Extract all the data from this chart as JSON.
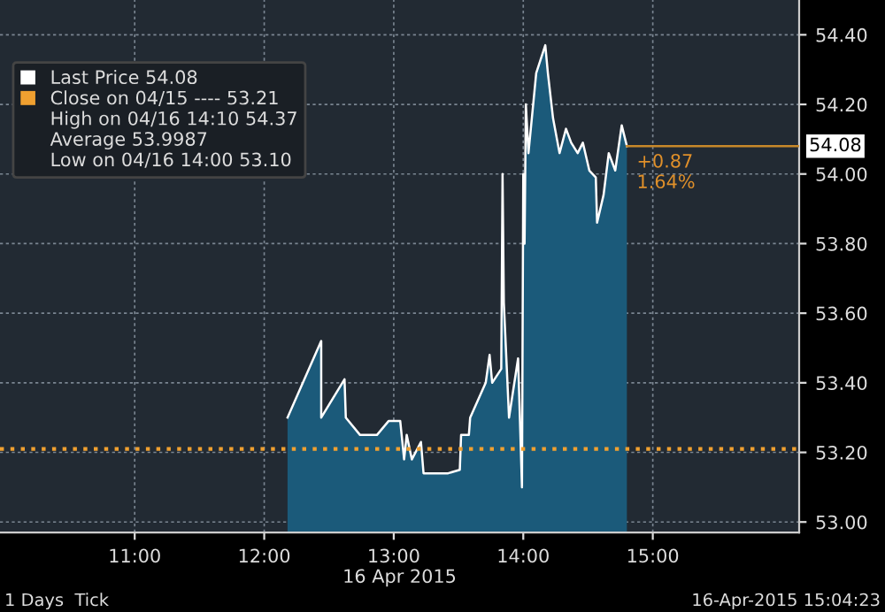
{
  "chart_data": {
    "type": "area",
    "xlabel": "16 Apr 2015",
    "series": [
      {
        "name": "Last Price 54.08",
        "color": "#ffffff",
        "x": [
          12.18,
          12.44,
          12.44,
          12.62,
          12.63,
          12.74,
          12.87,
          12.96,
          13.05,
          13.08,
          13.1,
          13.14,
          13.21,
          13.23,
          13.42,
          13.51,
          13.52,
          13.58,
          13.59,
          13.71,
          13.74,
          13.76,
          13.83,
          13.84,
          13.85,
          13.89,
          13.96,
          13.99,
          14.0,
          14.01,
          14.02,
          14.04,
          14.1,
          14.17,
          14.19,
          14.23,
          14.28,
          14.33,
          14.37,
          14.42,
          14.46,
          14.51,
          14.56,
          14.57,
          14.62,
          14.66,
          14.71,
          14.76,
          14.8
        ],
        "values": [
          53.3,
          53.52,
          53.3,
          53.41,
          53.3,
          53.25,
          53.25,
          53.29,
          53.29,
          53.18,
          53.25,
          53.18,
          53.23,
          53.14,
          53.14,
          53.15,
          53.25,
          53.25,
          53.3,
          53.4,
          53.48,
          53.4,
          53.44,
          54.0,
          53.63,
          53.3,
          53.47,
          53.1,
          54.0,
          53.8,
          54.2,
          54.06,
          54.29,
          54.37,
          54.29,
          54.16,
          54.06,
          54.13,
          54.09,
          54.06,
          54.09,
          54.01,
          53.99,
          53.86,
          53.94,
          54.06,
          54.01,
          54.14,
          54.08
        ]
      }
    ],
    "xlim": [
      9.96,
      16.13
    ],
    "ylim": [
      52.97,
      54.5
    ],
    "xticks": [
      {
        "value": 11,
        "label": "11:00"
      },
      {
        "value": 12,
        "label": "12:00"
      },
      {
        "value": 13,
        "label": "13:00"
      },
      {
        "value": 14,
        "label": "14:00"
      },
      {
        "value": 15,
        "label": "15:00"
      }
    ],
    "yticks": [
      {
        "value": 53.0,
        "label": "53.00"
      },
      {
        "value": 53.2,
        "label": "53.20"
      },
      {
        "value": 53.4,
        "label": "53.40"
      },
      {
        "value": 53.6,
        "label": "53.60"
      },
      {
        "value": 53.8,
        "label": "53.80"
      },
      {
        "value": 54.0,
        "label": "54.00"
      },
      {
        "value": 54.2,
        "label": "54.20"
      },
      {
        "value": 54.4,
        "label": "54.40"
      }
    ],
    "ref_lines": [
      {
        "axis": "y",
        "value": 53.21,
        "label": "Close on 04/15 ---- 53.21",
        "color": "#f0a030",
        "line_style": "dotted"
      },
      {
        "axis": "y",
        "value": 54.08,
        "label": "54.08",
        "color": "#c8882a",
        "line_style": "solid"
      }
    ],
    "annotations": [
      "High on 04/16 14:10 54.37",
      "Average 53.9987",
      "Low on 04/16 14:00 53.10",
      {
        "text": "+0.87\n1.64%",
        "x": 14.8,
        "y": 54.08
      },
      "1 Days  Tick",
      "16-Apr-2015 15:04:23"
    ],
    "grid": true,
    "legend": "top left"
  }
}
